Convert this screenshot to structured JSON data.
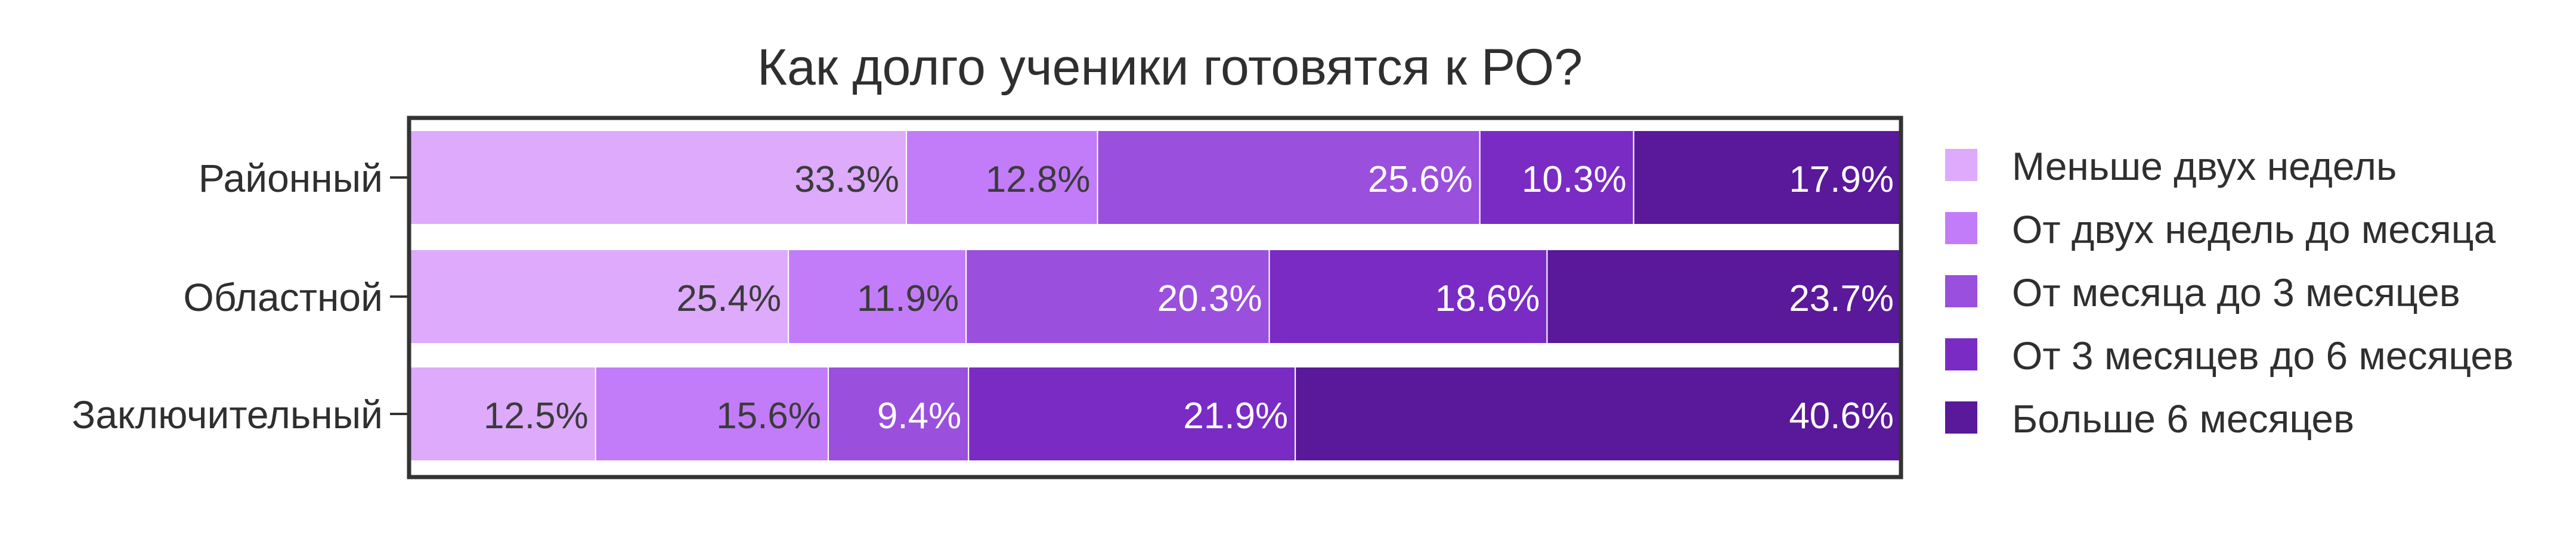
{
  "chart_data": {
    "type": "bar",
    "orientation": "horizontal",
    "stacked": true,
    "normalized_percent": true,
    "title": "Как долго ученики готовятся к РО?",
    "categories": [
      "Районный",
      "Областной",
      "Заключительный"
    ],
    "series": [
      {
        "name": "Меньше двух недель",
        "color": "#ddaafc",
        "values": [
          33.3,
          25.4,
          12.5
        ],
        "labels": [
          "33.3%",
          "25.4%",
          "12.5%"
        ],
        "label_color": "#3b3b3b"
      },
      {
        "name": "От двух недель до месяца",
        "color": "#c27cf9",
        "values": [
          12.8,
          11.9,
          15.6
        ],
        "labels": [
          "12.8%",
          "11.9%",
          "15.6%"
        ],
        "label_color": "#3b3b3b"
      },
      {
        "name": "От месяца до 3 месяцев",
        "color": "#9a4fdd",
        "values": [
          25.6,
          20.3,
          9.4
        ],
        "labels": [
          "25.6%",
          "20.3%",
          "9.4%"
        ],
        "label_color": "#ffffff"
      },
      {
        "name": "От 3 месяцев до 6 месяцев",
        "color": "#7a2bc4",
        "values": [
          10.3,
          18.6,
          21.9
        ],
        "labels": [
          "10.3%",
          "18.6%",
          "21.9%"
        ],
        "label_color": "#ffffff"
      },
      {
        "name": "Больше 6 месяцев",
        "color": "#5a189a",
        "values": [
          17.9,
          23.7,
          40.6
        ],
        "labels": [
          "17.9%",
          "23.7%",
          "40.6%"
        ],
        "label_color": "#ffffff"
      }
    ],
    "xlim": [
      0,
      100
    ],
    "grid": false,
    "legend": "right"
  }
}
